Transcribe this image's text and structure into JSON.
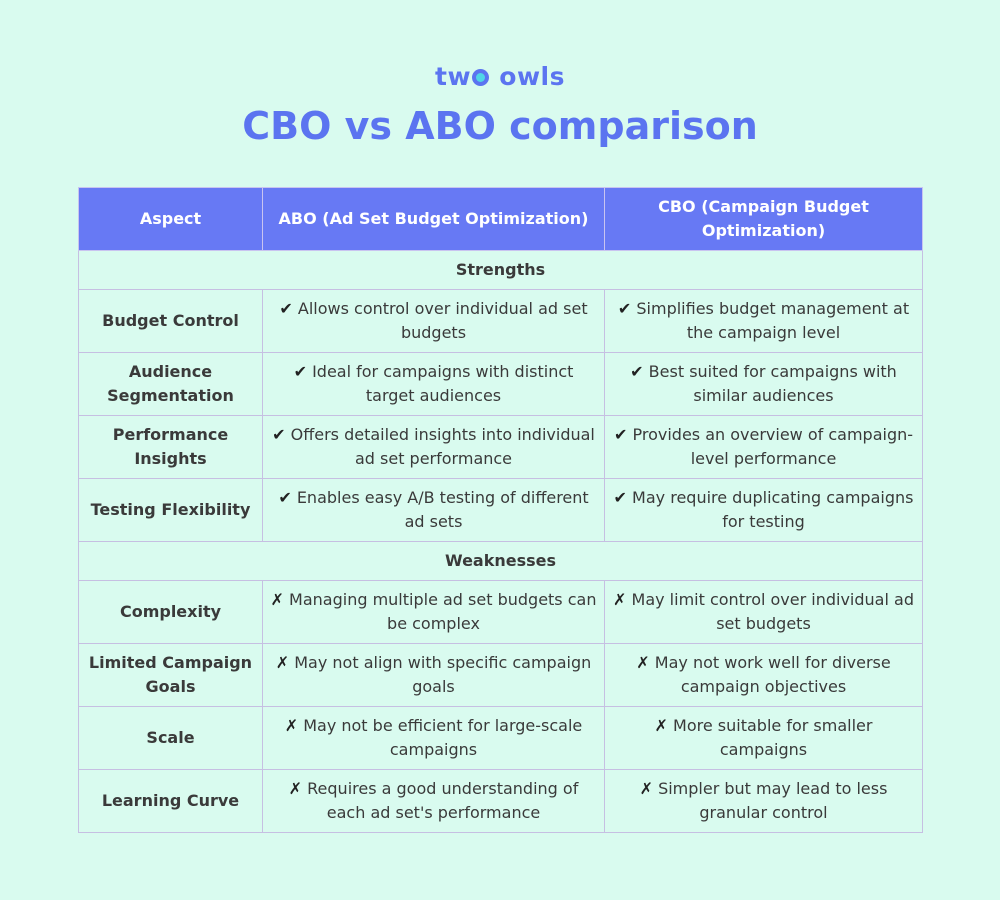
{
  "brand": {
    "text_left": "tw",
    "text_right": "owls"
  },
  "title": "CBO vs ABO comparison",
  "table": {
    "headers": [
      "Aspect",
      "ABO (Ad Set Budget Optimization)",
      "CBO (Campaign Budget Optimization)"
    ],
    "sections": [
      {
        "label": "Strengths",
        "mark": "✔",
        "rows": [
          {
            "aspect": "Budget Control",
            "abo": "Allows control over individual ad set budgets",
            "cbo": "Simplifies budget management at the campaign level"
          },
          {
            "aspect": "Audience Segmentation",
            "abo": "Ideal for campaigns with distinct target audiences",
            "cbo": "Best suited for campaigns with similar audiences"
          },
          {
            "aspect": "Performance Insights",
            "abo": "Offers detailed insights into individual ad set performance",
            "cbo": "Provides an overview of campaign-level performance"
          },
          {
            "aspect": "Testing Flexibility",
            "abo": "Enables easy A/B testing of different ad sets",
            "cbo": "May require duplicating campaigns for testing"
          }
        ]
      },
      {
        "label": "Weaknesses",
        "mark": "✗",
        "rows": [
          {
            "aspect": "Complexity",
            "abo": "Managing multiple ad set budgets can be complex",
            "cbo": "May limit control over individual ad set budgets"
          },
          {
            "aspect": "Limited Campaign Goals",
            "abo": "May not align with specific campaign goals",
            "cbo": "May not work well for diverse campaign objectives"
          },
          {
            "aspect": "Scale",
            "abo": "May not be efficient for large-scale campaigns",
            "cbo": "More suitable for smaller campaigns"
          },
          {
            "aspect": "Learning Curve",
            "abo": "Requires a good understanding of each ad set's performance",
            "cbo": "Simpler but may lead to less granular control"
          }
        ]
      }
    ]
  },
  "colors": {
    "background": "#d9fbef",
    "accent": "#5b74f0",
    "header_bg": "#6779f4",
    "border": "#c6bfe2"
  }
}
